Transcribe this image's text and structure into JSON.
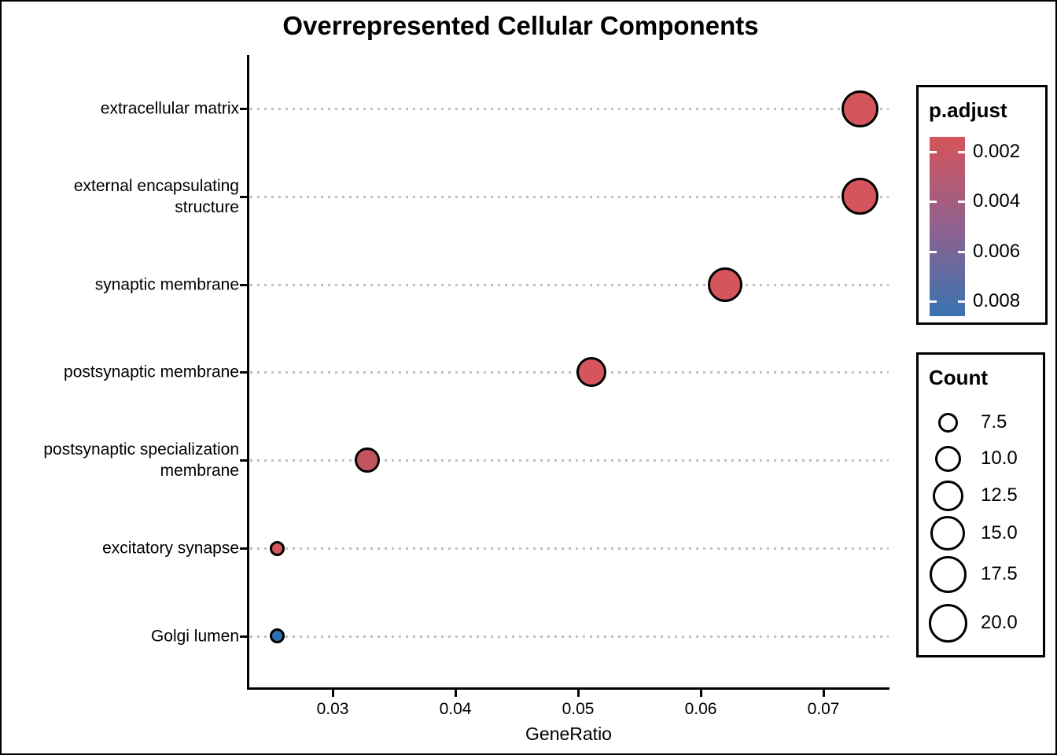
{
  "page": {
    "background": "#FFFFFF",
    "border_color": "#000000"
  },
  "chart_data": {
    "type": "scatter",
    "title": "Overrepresented Cellular Components",
    "xlabel": "GeneRatio",
    "ylabel": "",
    "xlim": [
      0.0231,
      0.0753
    ],
    "x_ticks": [
      0.03,
      0.04,
      0.05,
      0.06,
      0.07
    ],
    "x_tick_labels": [
      "0.03",
      "0.04",
      "0.05",
      "0.06",
      "0.07"
    ],
    "grid": "horizontal dotted gray lines, one per category",
    "legend_position": "right",
    "categories": [
      "extracellular matrix",
      "external encapsulating structure",
      "synaptic membrane",
      "postsynaptic membrane",
      "postsynaptic specialization membrane",
      "excitatory synapse",
      "Golgi lumen"
    ],
    "points": [
      {
        "label": "extracellular matrix",
        "gene_ratio": 0.073,
        "count": 20,
        "p_adjust": 0.0015,
        "color": "#D4555B"
      },
      {
        "label": "external encapsulating structure",
        "gene_ratio": 0.073,
        "count": 20,
        "p_adjust": 0.0015,
        "color": "#D4555B"
      },
      {
        "label": "synaptic membrane",
        "gene_ratio": 0.062,
        "count": 17,
        "p_adjust": 0.002,
        "color": "#D4555B"
      },
      {
        "label": "postsynaptic membrane",
        "gene_ratio": 0.0511,
        "count": 14,
        "p_adjust": 0.002,
        "color": "#D4555B"
      },
      {
        "label": "postsynaptic specialization membrane",
        "gene_ratio": 0.0328,
        "count": 9,
        "p_adjust": 0.003,
        "color": "#C1555F"
      },
      {
        "label": "excitatory synapse",
        "gene_ratio": 0.0255,
        "count": 7,
        "p_adjust": 0.002,
        "color": "#D4555B"
      },
      {
        "label": "Golgi lumen",
        "gene_ratio": 0.0255,
        "count": 7,
        "p_adjust": 0.008,
        "color": "#2E6FAD"
      }
    ],
    "legends": {
      "p_adjust": {
        "title": "p.adjust",
        "tick_values": [
          0.002,
          0.004,
          0.006,
          0.008
        ],
        "tick_labels": [
          "0.002",
          "0.004",
          "0.006",
          "0.008"
        ],
        "range": [
          0.0014,
          0.0086
        ],
        "top_color": "#D6545A",
        "mid_color": "#91618E",
        "bottom_color": "#3973B1"
      },
      "count": {
        "title": "Count",
        "entries": [
          {
            "label": "7.5",
            "value": 7.5
          },
          {
            "label": "10.0",
            "value": 10.0
          },
          {
            "label": "12.5",
            "value": 12.5
          },
          {
            "label": "15.0",
            "value": 15.0
          },
          {
            "label": "17.5",
            "value": 17.5
          },
          {
            "label": "20.0",
            "value": 20.0
          }
        ]
      }
    }
  }
}
